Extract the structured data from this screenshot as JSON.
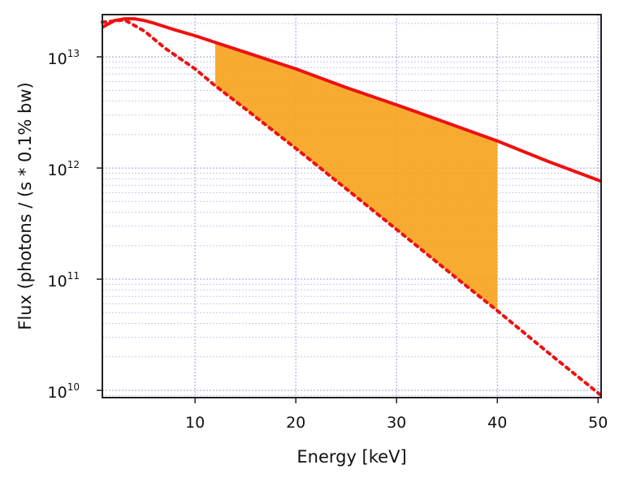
{
  "chart_data": {
    "type": "line",
    "xlabel": "Energy [keV]",
    "ylabel": "Flux (photons / (s * 0.1% bw)",
    "xlim": [
      0.8,
      50.3
    ],
    "ylim": [
      8600000000.0,
      24000000000000.0
    ],
    "yscale": "log",
    "grid": true,
    "x_ticks": [
      10,
      20,
      30,
      40,
      50
    ],
    "y_ticks": [
      {
        "value": 10000000000.0,
        "base": "10",
        "exp": "10"
      },
      {
        "value": 100000000000.0,
        "base": "10",
        "exp": "11"
      },
      {
        "value": 1000000000000.0,
        "base": "10",
        "exp": "12"
      },
      {
        "value": 10000000000000.0,
        "base": "10",
        "exp": "13"
      }
    ],
    "series": [
      {
        "style": "solid",
        "color": "#ee1111",
        "x": [
          0.8,
          2,
          3,
          4,
          5,
          6,
          8,
          10,
          12,
          15,
          20,
          25,
          30,
          35,
          40,
          45,
          50.3
        ],
        "y": [
          18500000000000.0,
          21200000000000.0,
          22000000000000.0,
          22000000000000.0,
          21200000000000.0,
          20000000000000.0,
          17500000000000.0,
          15500000000000.0,
          13500000000000.0,
          11000000000000.0,
          7800000000000.0,
          5300000000000.0,
          3700000000000.0,
          2550000000000.0,
          1750000000000.0,
          1150000000000.0,
          760000000000.0
        ]
      },
      {
        "style": "dotted",
        "color": "#ee1111",
        "x": [
          0.8,
          3,
          5,
          7,
          10,
          12,
          15,
          20,
          25,
          30,
          35,
          40,
          45,
          50.3
        ],
        "y": [
          20500000000000.0,
          21500000000000.0,
          17000000000000.0,
          12000000000000.0,
          7800000000000.0,
          5500000000000.0,
          3400000000000.0,
          1500000000000.0,
          650000000000.0,
          280000000000.0,
          120000000000.0,
          52000000000.0,
          22000000000.0,
          9000000000.0
        ]
      }
    ],
    "shaded_region": {
      "x_from": 12,
      "x_to": 40,
      "color": "#f7a21b"
    }
  }
}
